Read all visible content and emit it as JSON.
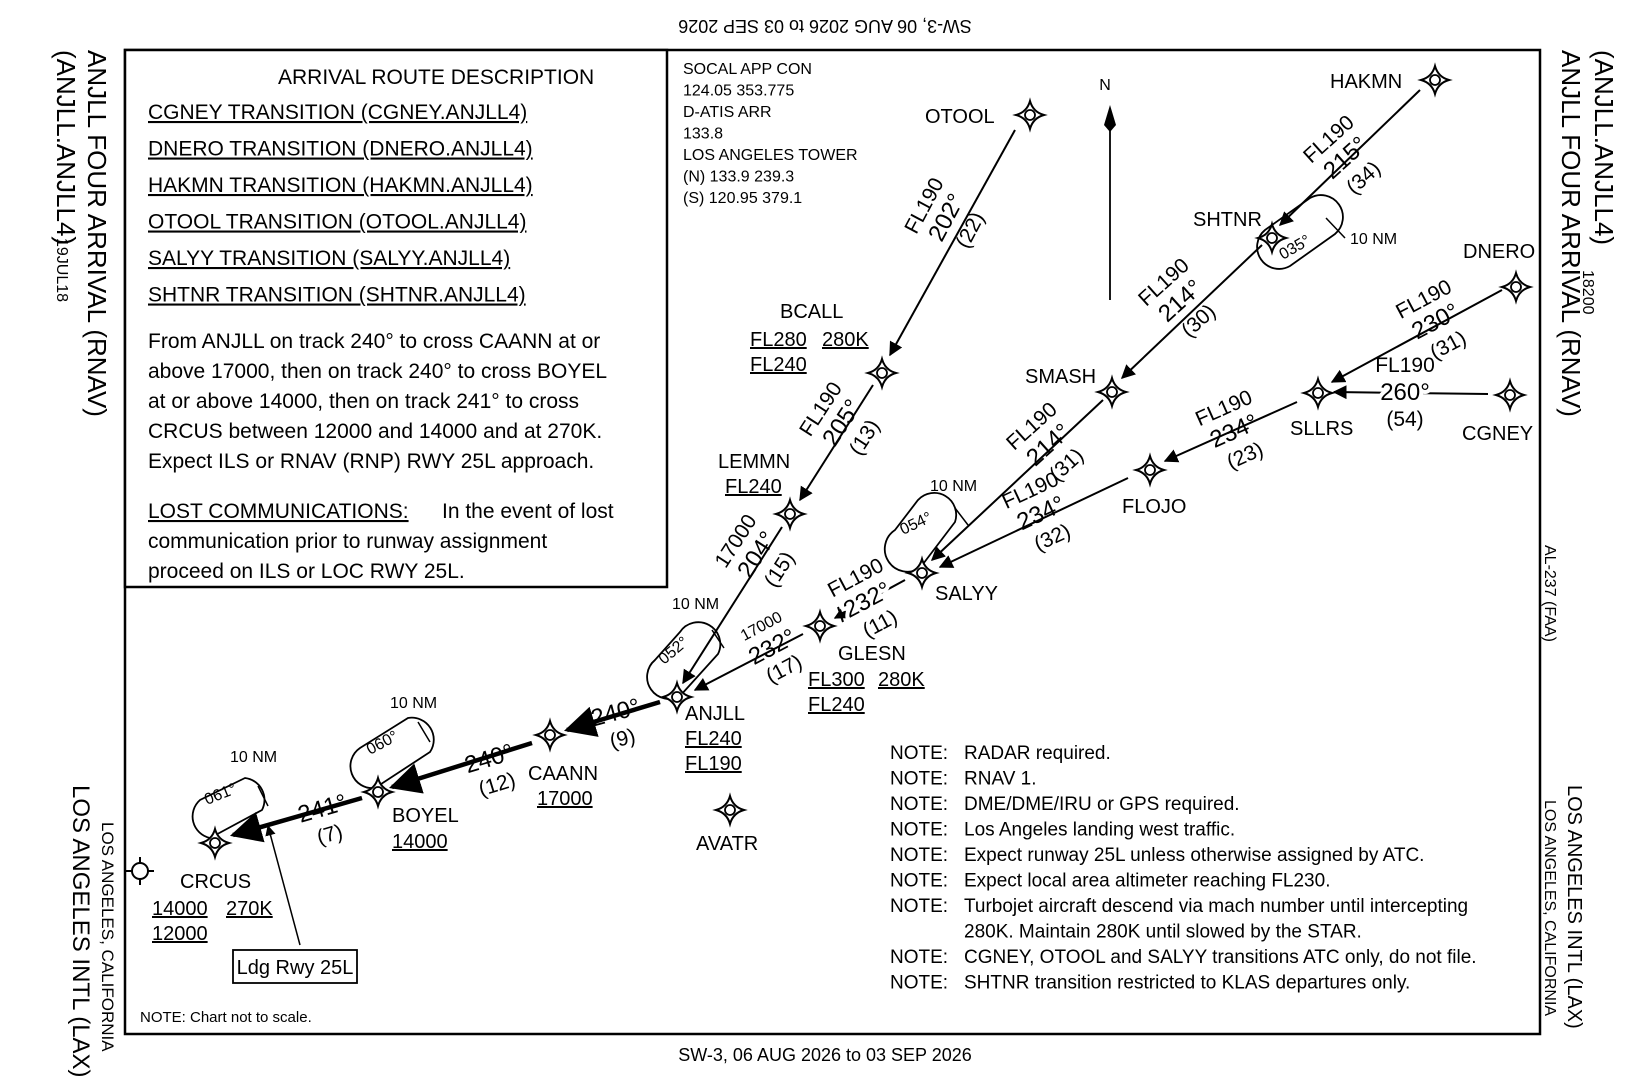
{
  "edition_top": "SW-3,  06 AUG 2026  to  03 SEP 2026",
  "edition_bottom": "SW-3,  06 AUG 2026  to  03 SEP 2026",
  "left_margin": {
    "computer_code": "(ANJLL.ANJLL4)",
    "title": "ANJLL FOUR ARRIVAL (RNAV)",
    "date_code": "19JUL18",
    "airport": "LOS ANGELES INTL (LAX)",
    "city": "LOS ANGELES, CALIFORNIA"
  },
  "right_margin": {
    "computer_code": "(ANJLL.ANJLL4)",
    "title": "ANJLL FOUR ARRIVAL (RNAV)",
    "revision": "18200",
    "chart_id": "AL-237 (FAA)",
    "airport": "LOS ANGELES INTL (LAX)",
    "city": "LOS ANGELES, CALIFORNIA"
  },
  "description": {
    "heading": "ARRIVAL ROUTE DESCRIPTION",
    "transitions": [
      "CGNEY TRANSITION (CGNEY.ANJLL4)",
      "DNERO TRANSITION (DNERO.ANJLL4)",
      "HAKMN TRANSITION (HAKMN.ANJLL4)",
      "OTOOL TRANSITION (OTOOL.ANJLL4)",
      "SALYY TRANSITION (SALYY.ANJLL4)",
      "SHTNR TRANSITION (SHTNR.ANJLL4)"
    ],
    "route_lines": [
      "From ANJLL on track 240° to cross CAANN at or",
      "above 17000, then on track 240° to cross BOYEL",
      "at or above 14000, then on track 241° to cross",
      "CRCUS between 12000 and 14000 and at 270K.",
      "Expect ILS or RNAV (RNP) RWY 25L approach."
    ],
    "lost_comm_heading": "LOST COMMUNICATIONS:",
    "lost_comm_lines": [
      "In the event of lost",
      "communication prior to runway assignment",
      "proceed on ILS or LOC RWY 25L."
    ]
  },
  "frequencies": [
    "SOCAL APP CON",
    "124.05  353.775",
    "D-ATIS ARR",
    "133.8",
    "LOS ANGELES TOWER",
    "(N) 133.9  239.3",
    "(S) 120.95  379.1"
  ],
  "north_label": "N",
  "fixes": {
    "hakmn": "HAKMN",
    "otool": "OTOOL",
    "shtnr": "SHTNR",
    "dnero": "DNERO",
    "bcall": "BCALL",
    "smash": "SMASH",
    "sllrs": "SLLRS",
    "cgney": "CGNEY",
    "lemmn": "LEMMN",
    "flojo": "FLOJO",
    "salyy": "SALYY",
    "glesn": "GLESN",
    "anjll": "ANJLL",
    "caann": "CAANN",
    "avatr": "AVATR",
    "boyel": "BOYEL",
    "crcus": "CRCUS"
  },
  "fix_constraints": {
    "bcall_1": "FL280",
    "bcall_2": "280K",
    "bcall_3": "FL240",
    "lemmn_1": "FL240",
    "glesn_1": "FL300",
    "glesn_2": "280K",
    "glesn_3": "FL240",
    "anjll_1": "FL240",
    "anjll_2": "FL190",
    "caann_1": "17000",
    "boyel_1": "14000",
    "crcus_1": "14000",
    "crcus_2": "270K",
    "crcus_3": "12000"
  },
  "legs": {
    "hakmn_alt": "FL190",
    "hakmn_crs": "215°",
    "hakmn_dist": "(34)",
    "otool_alt": "FL190",
    "otool_crs": "202°",
    "otool_dist": "(22)",
    "shtnr_alt": "FL190",
    "shtnr_crs": "214°",
    "shtnr_dist": "(30)",
    "smash_alt": "FL190",
    "smash_crs": "214°",
    "smash_dist": "(31)",
    "dnero_alt": "FL190",
    "dnero_crs": "230°",
    "dnero_dist": "(31)",
    "cgney_alt": "FL190",
    "cgney_crs": "260°",
    "cgney_dist": "(54)",
    "sllrs_alt": "FL190",
    "sllrs_crs": "234°",
    "sllrs_dist": "(23)",
    "flojo_alt": "FL190",
    "flojo_crs": "234°",
    "flojo_dist": "(32)",
    "bcall_alt": "FL190",
    "bcall_crs": "205°",
    "bcall_dist": "(13)",
    "lemmn_alt": "17000",
    "lemmn_crs": "204°",
    "lemmn_dist": "(15)",
    "salyy_alt": "FL190",
    "salyy_crs": "232°",
    "salyy_dist": "(11)",
    "glesn_alt": "17000",
    "glesn_crs": "232°",
    "glesn_dist": "(17)",
    "anjll_crs": "240°",
    "anjll_dist": "(9)",
    "caann_crs": "240°",
    "caann_dist": "(12)",
    "boyel_crs": "241°",
    "boyel_dist": "(7)"
  },
  "holds": {
    "shtnr_crs": "035°",
    "shtnr_len": "10 NM",
    "salyy_crs": "054°",
    "salyy_len": "10 NM",
    "anjll_crs": "052°",
    "anjll_len": "10 NM",
    "boyel_crs": "060°",
    "boyel_len": "10 NM",
    "crcus_crs": "061°",
    "crcus_len": "10 NM"
  },
  "runway_callout": "Ldg Rwy 25L",
  "notes": [
    {
      "label": "NOTE:",
      "text": "RADAR required."
    },
    {
      "label": "NOTE:",
      "text": "RNAV 1."
    },
    {
      "label": "NOTE:",
      "text": "DME/DME/IRU or GPS required."
    },
    {
      "label": "NOTE:",
      "text": "Los Angeles landing west traffic."
    },
    {
      "label": "NOTE:",
      "text": "Expect runway 25L unless otherwise assigned by ATC."
    },
    {
      "label": "NOTE:",
      "text": "Expect local area altimeter reaching FL230."
    },
    {
      "label": "NOTE:",
      "text": "Turbojet aircraft descend via mach number until intercepting"
    },
    {
      "label": "",
      "text": "280K.  Maintain 280K until slowed by the STAR."
    },
    {
      "label": "NOTE:",
      "text": "CGNEY, OTOOL and SALYY transitions ATC only, do not file."
    },
    {
      "label": "NOTE:",
      "text": "SHTNR transition restricted to KLAS departures only."
    }
  ],
  "scale_note": "NOTE:  Chart not to scale."
}
